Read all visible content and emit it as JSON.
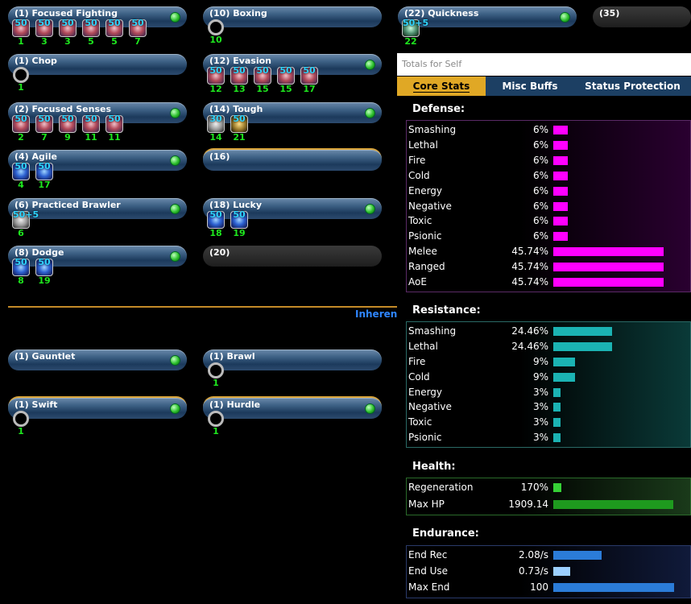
{
  "powers": [
    {
      "name": "(1) Focused Fighting",
      "style": "normal",
      "dot": true,
      "slots": [
        {
          "lvl": "50",
          "num": "1",
          "kind": "enh"
        },
        {
          "lvl": "50",
          "num": "3",
          "kind": "enh"
        },
        {
          "lvl": "50",
          "num": "3",
          "kind": "enh"
        },
        {
          "lvl": "50",
          "num": "5",
          "kind": "enh"
        },
        {
          "lvl": "50",
          "num": "5",
          "kind": "enh"
        },
        {
          "lvl": "50",
          "num": "7",
          "kind": "enh"
        }
      ]
    },
    {
      "name": "(10) Boxing",
      "style": "normal",
      "dot": false,
      "slots": [
        {
          "lvl": "",
          "num": "10",
          "kind": "empty"
        }
      ]
    },
    {
      "name": "(22) Quickness",
      "style": "normal",
      "dot": true,
      "slots": [
        {
          "lvl": "50+5",
          "num": "22",
          "kind": "teal"
        }
      ]
    },
    {
      "name": "(35)",
      "style": "dark",
      "dot": false,
      "slots": []
    },
    {
      "name": "(1) Chop",
      "style": "normal",
      "dot": false,
      "slots": [
        {
          "lvl": "",
          "num": "1",
          "kind": "empty"
        }
      ]
    },
    {
      "name": "(12) Evasion",
      "style": "normal",
      "dot": true,
      "slots": [
        {
          "lvl": "50",
          "num": "12",
          "kind": "enh"
        },
        {
          "lvl": "50",
          "num": "13",
          "kind": "enh"
        },
        {
          "lvl": "50",
          "num": "15",
          "kind": "enh"
        },
        {
          "lvl": "50",
          "num": "15",
          "kind": "enh"
        },
        {
          "lvl": "50",
          "num": "17",
          "kind": "enh"
        }
      ]
    },
    {
      "name": "(2) Focused Senses",
      "style": "normal",
      "dot": true,
      "slots": [
        {
          "lvl": "50",
          "num": "2",
          "kind": "enh"
        },
        {
          "lvl": "50",
          "num": "7",
          "kind": "enh"
        },
        {
          "lvl": "50",
          "num": "9",
          "kind": "enh"
        },
        {
          "lvl": "50",
          "num": "11",
          "kind": "enh"
        },
        {
          "lvl": "50",
          "num": "11",
          "kind": "enh"
        }
      ]
    },
    {
      "name": "(14) Tough",
      "style": "normal",
      "dot": true,
      "slots": [
        {
          "lvl": "30",
          "num": "14",
          "kind": "gray"
        },
        {
          "lvl": "50",
          "num": "21",
          "kind": "gold"
        }
      ]
    },
    {
      "name": "(4) Agile",
      "style": "normal",
      "dot": true,
      "slots": [
        {
          "lvl": "50",
          "num": "4",
          "kind": "blue"
        },
        {
          "lvl": "50",
          "num": "17",
          "kind": "blue"
        }
      ]
    },
    {
      "name": "(16)",
      "style": "gold",
      "dot": false,
      "slots": []
    },
    {
      "name": "(6) Practiced Brawler",
      "style": "normal",
      "dot": true,
      "slots": [
        {
          "lvl": "50+5",
          "num": "6",
          "kind": "gray"
        }
      ]
    },
    {
      "name": "(18) Lucky",
      "style": "normal",
      "dot": true,
      "slots": [
        {
          "lvl": "50",
          "num": "18",
          "kind": "blue"
        },
        {
          "lvl": "50",
          "num": "19",
          "kind": "blue"
        }
      ]
    },
    {
      "name": "(8) Dodge",
      "style": "normal",
      "dot": true,
      "slots": [
        {
          "lvl": "50",
          "num": "8",
          "kind": "blue"
        },
        {
          "lvl": "50",
          "num": "19",
          "kind": "blue"
        }
      ]
    },
    {
      "name": "(20)",
      "style": "dark",
      "dot": false,
      "slots": []
    },
    {
      "name": "(1) Gauntlet",
      "style": "normal",
      "dot": true,
      "slots": []
    },
    {
      "name": "(1) Brawl",
      "style": "normal",
      "dot": false,
      "slots": [
        {
          "lvl": "",
          "num": "1",
          "kind": "empty"
        }
      ]
    },
    {
      "name": "(1) Swift",
      "style": "gold",
      "dot": true,
      "slots": [
        {
          "lvl": "",
          "num": "1",
          "kind": "empty"
        }
      ]
    },
    {
      "name": "(1) Hurdle",
      "style": "gold",
      "dot": true,
      "slots": [
        {
          "lvl": "",
          "num": "1",
          "kind": "empty"
        }
      ]
    }
  ],
  "inherent_label": "Inheren",
  "totals_label": "Totals for Self",
  "tabs": [
    "Core Stats",
    "Misc Buffs",
    "Status Protection"
  ],
  "active_tab": "Core Stats",
  "colors": {
    "defense": "#ff00ff",
    "resistance": "#1bb3b3",
    "regen": "#36d236",
    "maxhp": "#1e9a1e",
    "endurance": "#2b7cd8",
    "accent": "#e0a825"
  },
  "sections": [
    {
      "title": "Defense:",
      "color": "defense",
      "max": 50,
      "rows": [
        {
          "label": "Smashing",
          "value": "6%",
          "num": 6
        },
        {
          "label": "Lethal",
          "value": "6%",
          "num": 6
        },
        {
          "label": "Fire",
          "value": "6%",
          "num": 6
        },
        {
          "label": "Cold",
          "value": "6%",
          "num": 6
        },
        {
          "label": "Energy",
          "value": "6%",
          "num": 6
        },
        {
          "label": "Negative",
          "value": "6%",
          "num": 6
        },
        {
          "label": "Toxic",
          "value": "6%",
          "num": 6
        },
        {
          "label": "Psionic",
          "value": "6%",
          "num": 6
        },
        {
          "label": "Melee",
          "value": "45.74%",
          "num": 45.74
        },
        {
          "label": "Ranged",
          "value": "45.74%",
          "num": 45.74
        },
        {
          "label": "AoE",
          "value": "45.74%",
          "num": 45.74
        }
      ]
    },
    {
      "title": "Resistance:",
      "color": "resistance",
      "max": 50,
      "rows": [
        {
          "label": "Smashing",
          "value": "24.46%",
          "num": 24.46
        },
        {
          "label": "Lethal",
          "value": "24.46%",
          "num": 24.46
        },
        {
          "label": "Fire",
          "value": "9%",
          "num": 9
        },
        {
          "label": "Cold",
          "value": "9%",
          "num": 9
        },
        {
          "label": "Energy",
          "value": "3%",
          "num": 3
        },
        {
          "label": "Negative",
          "value": "3%",
          "num": 3
        },
        {
          "label": "Toxic",
          "value": "3%",
          "num": 3
        },
        {
          "label": "Psionic",
          "value": "3%",
          "num": 3
        }
      ]
    },
    {
      "title": "Health:",
      "color": "regen",
      "rows": [
        {
          "label": "Regeneration",
          "value": "170%",
          "num": 0.04
        },
        {
          "label": "Max HP",
          "value": "1909.14",
          "num": 0.99
        }
      ]
    },
    {
      "title": "Endurance:",
      "color": "endurance",
      "rows": [
        {
          "label": "End Rec",
          "value": "2.08/s",
          "num": 0.4
        },
        {
          "label": "End Use",
          "value": "0.73/s",
          "num": 0.14
        },
        {
          "label": "Max End",
          "value": "100",
          "num": 1.0
        }
      ]
    }
  ]
}
